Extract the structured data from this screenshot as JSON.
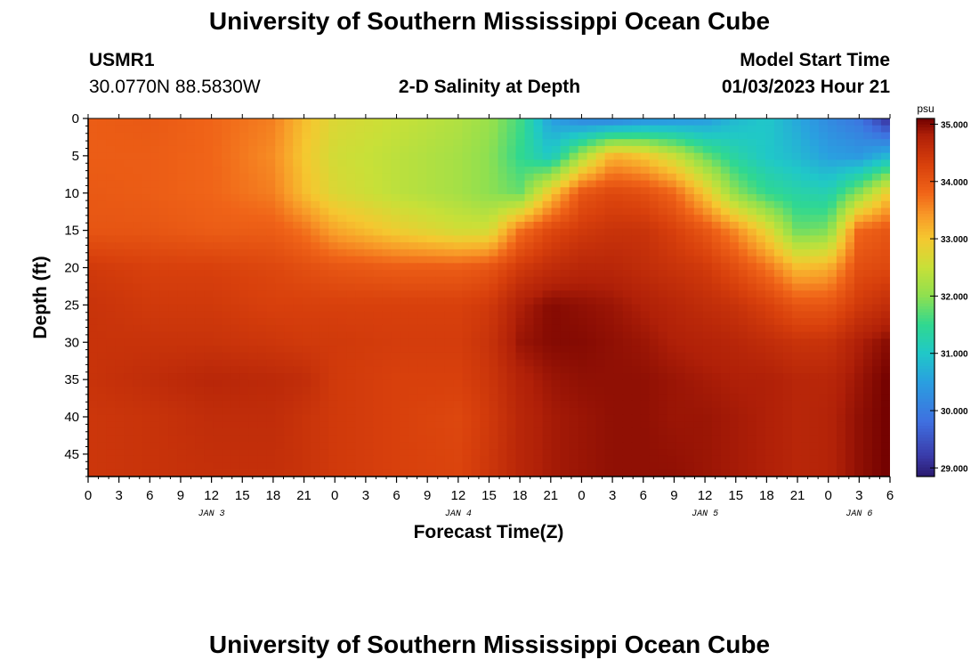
{
  "page": {
    "title": "University of Southern Mississippi Ocean Cube",
    "footer_title": "University of Southern Mississippi Ocean Cube",
    "station": "USMR1",
    "coords": "30.0770N  88.5830W",
    "plot_title": "2-D Salinity at Depth",
    "start_label": "Model Start Time",
    "start_time": "01/03/2023 Hour 21"
  },
  "chart_data": {
    "type": "heatmap",
    "title": "2-D Salinity at Depth",
    "xlabel": "Forecast Time(Z)",
    "ylabel": "Depth (ft)",
    "x_hours_range": [
      0,
      78
    ],
    "ylim": [
      0,
      48
    ],
    "y_inverted": true,
    "x_tick_labels": [
      "0",
      "3",
      "6",
      "9",
      "12",
      "15",
      "18",
      "21",
      "0",
      "3",
      "6",
      "9",
      "12",
      "15",
      "18",
      "21",
      "0",
      "3",
      "6",
      "9",
      "12",
      "15",
      "18",
      "21",
      "0",
      "3",
      "6"
    ],
    "y_ticks": [
      0,
      5,
      10,
      15,
      20,
      25,
      30,
      35,
      40,
      45
    ],
    "date_labels": [
      {
        "text": "JAN 3",
        "hour": 12
      },
      {
        "text": "JAN 4",
        "hour": 36
      },
      {
        "text": "JAN 5",
        "hour": 60
      },
      {
        "text": "JAN 6",
        "hour": 75
      }
    ],
    "colorbar": {
      "unit": "psu",
      "min": 28.85,
      "max": 35.1,
      "ticks": [
        {
          "value": 35,
          "label": "35.000"
        },
        {
          "value": 34,
          "label": "34.000"
        },
        {
          "value": 33,
          "label": "33.000"
        },
        {
          "value": 32,
          "label": "32.000"
        },
        {
          "value": 31,
          "label": "31.000"
        },
        {
          "value": 30,
          "label": "30.000"
        },
        {
          "value": 29,
          "label": "29.000"
        }
      ]
    },
    "color_stops": [
      {
        "value": 28.85,
        "color": "#2a1a6e"
      },
      {
        "value": 29.2,
        "color": "#3a3aa8"
      },
      {
        "value": 29.8,
        "color": "#3f6fe0"
      },
      {
        "value": 30.5,
        "color": "#2a9fe0"
      },
      {
        "value": 31.0,
        "color": "#20c8c8"
      },
      {
        "value": 31.5,
        "color": "#30d890"
      },
      {
        "value": 32.0,
        "color": "#8ee050"
      },
      {
        "value": 32.5,
        "color": "#c8e038"
      },
      {
        "value": 33.0,
        "color": "#f5c830"
      },
      {
        "value": 33.4,
        "color": "#f89a28"
      },
      {
        "value": 33.8,
        "color": "#f06418"
      },
      {
        "value": 34.3,
        "color": "#d8400c"
      },
      {
        "value": 34.8,
        "color": "#b02008"
      },
      {
        "value": 35.1,
        "color": "#700000"
      }
    ],
    "depths_ft": [
      0,
      5,
      10,
      15,
      20,
      25,
      30,
      35,
      40,
      48
    ],
    "hours": [
      0,
      6,
      12,
      18,
      21,
      24,
      30,
      36,
      39,
      42,
      45,
      48,
      51,
      54,
      57,
      60,
      63,
      66,
      69,
      72,
      75,
      78
    ],
    "salinity_psu": [
      [
        33.9,
        33.95,
        33.8,
        33.6,
        33.1,
        32.7,
        32.5,
        32.3,
        32.1,
        31.6,
        30.5,
        30.1,
        30.0,
        30.2,
        30.3,
        30.4,
        30.8,
        31.0,
        30.6,
        30.2,
        29.9,
        29.0
      ],
      [
        33.9,
        33.9,
        33.8,
        33.5,
        33.0,
        32.6,
        32.4,
        32.2,
        32.0,
        31.5,
        31.0,
        32.2,
        33.2,
        33.0,
        32.5,
        31.8,
        31.3,
        31.0,
        30.8,
        30.5,
        30.4,
        30.8
      ],
      [
        33.95,
        33.9,
        33.8,
        33.6,
        33.1,
        32.7,
        32.4,
        32.2,
        32.0,
        31.8,
        33.0,
        34.0,
        34.2,
        34.1,
        33.8,
        33.0,
        32.0,
        31.5,
        31.3,
        31.2,
        32.0,
        33.0
      ],
      [
        34.0,
        34.0,
        33.9,
        33.9,
        33.7,
        33.3,
        32.9,
        32.6,
        32.6,
        33.7,
        34.2,
        34.4,
        34.5,
        34.5,
        34.3,
        34.0,
        33.5,
        32.8,
        31.8,
        31.9,
        33.8,
        34.0
      ],
      [
        34.4,
        34.3,
        34.3,
        34.2,
        34.1,
        34.0,
        33.9,
        33.9,
        34.0,
        34.4,
        34.6,
        34.7,
        34.7,
        34.6,
        34.5,
        34.4,
        34.1,
        33.7,
        33.1,
        33.2,
        34.1,
        34.2
      ],
      [
        34.5,
        34.4,
        34.4,
        34.3,
        34.3,
        34.3,
        34.3,
        34.3,
        34.4,
        34.8,
        35.0,
        34.95,
        34.9,
        34.8,
        34.7,
        34.6,
        34.5,
        34.3,
        34.0,
        34.0,
        34.4,
        34.6
      ],
      [
        34.5,
        34.5,
        34.5,
        34.45,
        34.4,
        34.4,
        34.35,
        34.35,
        34.5,
        34.9,
        35.0,
        35.0,
        34.95,
        34.9,
        34.8,
        34.75,
        34.7,
        34.6,
        34.5,
        34.5,
        34.8,
        35.0
      ],
      [
        34.5,
        34.6,
        34.7,
        34.65,
        34.6,
        34.4,
        34.3,
        34.3,
        34.45,
        34.75,
        34.9,
        34.95,
        34.95,
        34.95,
        34.9,
        34.85,
        34.8,
        34.8,
        34.7,
        34.7,
        34.9,
        35.1
      ],
      [
        34.45,
        34.5,
        34.6,
        34.6,
        34.5,
        34.4,
        34.3,
        34.2,
        34.4,
        34.7,
        34.85,
        34.9,
        34.95,
        34.95,
        34.9,
        34.9,
        34.85,
        34.8,
        34.7,
        34.75,
        34.95,
        35.1
      ],
      [
        34.45,
        34.5,
        34.55,
        34.55,
        34.5,
        34.4,
        34.3,
        34.25,
        34.45,
        34.7,
        34.85,
        34.9,
        34.95,
        34.95,
        34.95,
        34.9,
        34.85,
        34.8,
        34.7,
        34.75,
        34.95,
        35.1
      ]
    ]
  }
}
